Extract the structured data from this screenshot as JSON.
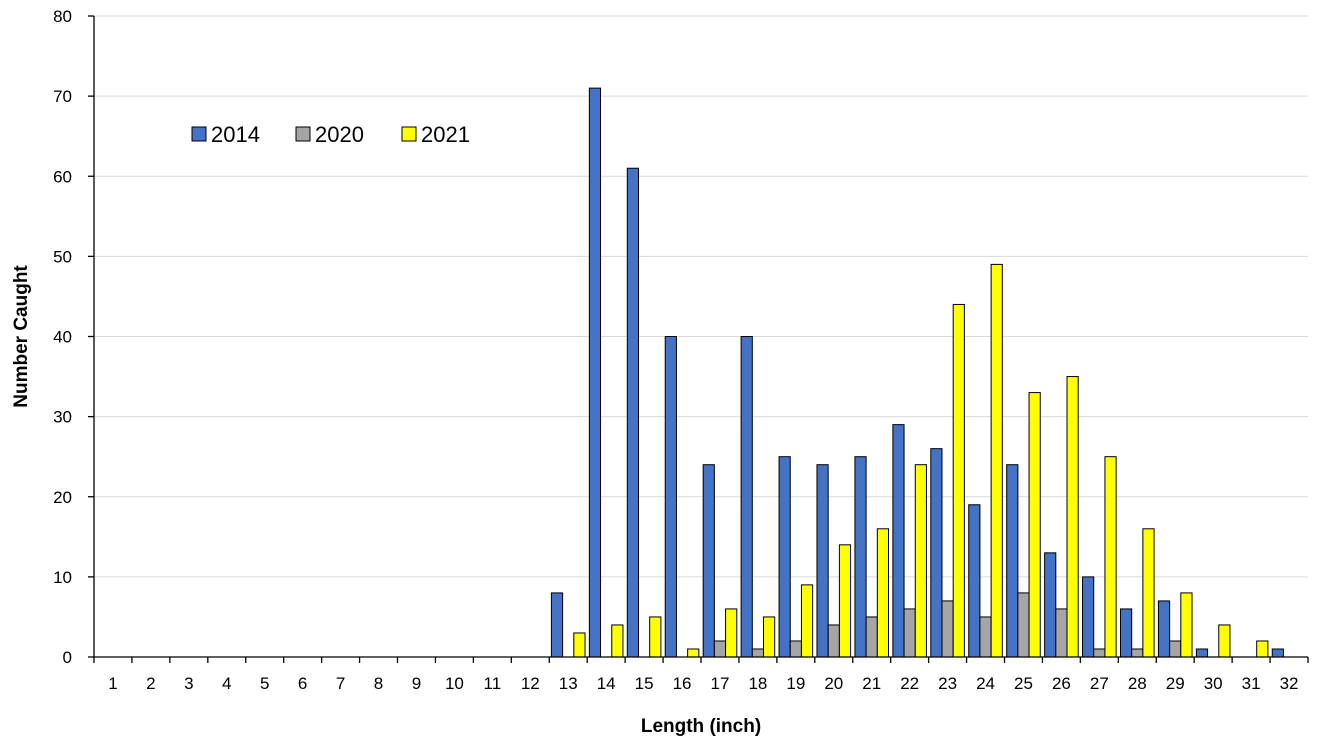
{
  "chart_data": {
    "type": "bar",
    "title": "",
    "xlabel": "Length (inch)",
    "ylabel": "Number Caught",
    "ylim": [
      0,
      80
    ],
    "yticks": [
      0,
      10,
      20,
      30,
      40,
      50,
      60,
      70,
      80
    ],
    "grid": true,
    "legend_position": "top-left",
    "categories": [
      "1",
      "2",
      "3",
      "4",
      "5",
      "6",
      "7",
      "8",
      "9",
      "10",
      "11",
      "12",
      "13",
      "14",
      "15",
      "16",
      "17",
      "18",
      "19",
      "20",
      "21",
      "22",
      "23",
      "24",
      "25",
      "26",
      "27",
      "28",
      "29",
      "30",
      "31",
      "32"
    ],
    "series": [
      {
        "name": "2014",
        "color": "#4472C4",
        "values": [
          0,
          0,
          0,
          0,
          0,
          0,
          0,
          0,
          0,
          0,
          0,
          0,
          8,
          71,
          61,
          40,
          24,
          40,
          25,
          24,
          25,
          29,
          26,
          19,
          24,
          13,
          10,
          6,
          7,
          1,
          0,
          1
        ]
      },
      {
        "name": "2020",
        "color": "#A5A5A5",
        "values": [
          0,
          0,
          0,
          0,
          0,
          0,
          0,
          0,
          0,
          0,
          0,
          0,
          0,
          0,
          0,
          0,
          2,
          1,
          2,
          4,
          5,
          6,
          7,
          5,
          8,
          6,
          1,
          1,
          2,
          0,
          0,
          0
        ]
      },
      {
        "name": "2021",
        "color": "#FFFF00",
        "values": [
          0,
          0,
          0,
          0,
          0,
          0,
          0,
          0,
          0,
          0,
          0,
          0,
          3,
          4,
          5,
          1,
          6,
          5,
          9,
          14,
          16,
          24,
          44,
          49,
          33,
          35,
          25,
          16,
          8,
          4,
          2,
          0
        ]
      }
    ]
  }
}
